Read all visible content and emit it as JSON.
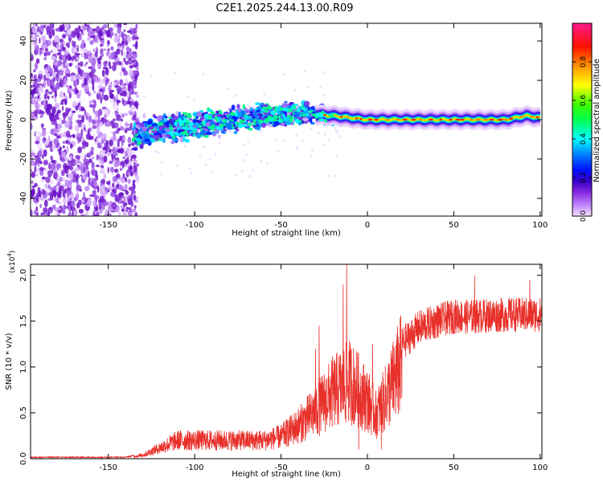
{
  "title": "C2E1.2025.244.13.00.R09",
  "chart_data": [
    {
      "type": "heatmap",
      "title": "C2E1.2025.244.13.00.R09",
      "xlabel": "Height of straight line (km)",
      "ylabel": "Frequency (Hz)",
      "xlim": [
        -195,
        101
      ],
      "ylim": [
        -49,
        49
      ],
      "xticks": [
        -150,
        -100,
        -50,
        0,
        50,
        100
      ],
      "yticks": [
        -40,
        -20,
        0,
        20,
        40
      ],
      "xtick_labels": [
        "-150",
        "-100",
        "-50",
        "0",
        "50",
        "100"
      ],
      "ytick_labels": [
        "-40",
        "-20",
        "0",
        "20",
        "40"
      ],
      "colorbar": {
        "label": "Normalized spectral amplitude",
        "range": [
          0,
          1
        ],
        "ticks": [
          0.0,
          0.2,
          0.4,
          0.6,
          0.8
        ],
        "tick_labels": [
          "0.0",
          "0.2",
          "0.4",
          "0.6",
          "0.8"
        ],
        "colors": [
          "#f0d8ff",
          "#c080ff",
          "#8a2be2",
          "#4b0082",
          "#0000ff",
          "#00ffff",
          "#00ff00",
          "#ffff00",
          "#ff8000",
          "#ff0000",
          "#ff1493"
        ]
      },
      "center_frequency_trend": [
        {
          "x": -135,
          "y": -8
        },
        {
          "x": -120,
          "y": -5
        },
        {
          "x": -100,
          "y": -3
        },
        {
          "x": -80,
          "y": 0
        },
        {
          "x": -60,
          "y": 2
        },
        {
          "x": -40,
          "y": 3
        },
        {
          "x": -20,
          "y": 2
        },
        {
          "x": 0,
          "y": 0
        },
        {
          "x": 50,
          "y": 0
        },
        {
          "x": 80,
          "y": 0
        },
        {
          "x": 92,
          "y": 2
        },
        {
          "x": 100,
          "y": 1
        }
      ]
    },
    {
      "type": "line",
      "xlabel": "Height of straight line (km)",
      "ylabel": "SNR (10 * v/v)",
      "y_multiplier": "(x10",
      "y_multiplier_exp": "4",
      "y_multiplier_close": ")",
      "xlim": [
        -195,
        101
      ],
      "ylim": [
        0,
        2.12
      ],
      "xticks": [
        -150,
        -100,
        -50,
        0,
        50,
        100
      ],
      "yticks": [
        0.0,
        0.5,
        1.0,
        1.5,
        2.0
      ],
      "xtick_labels": [
        "-150",
        "-100",
        "-50",
        "0",
        "50",
        "100"
      ],
      "ytick_labels": [
        "0.0",
        "0.5",
        "1.0",
        "1.5",
        "2.0"
      ],
      "series": [
        {
          "name": "SNR",
          "color": "#e8302a",
          "envelope": [
            {
              "x": -195,
              "y": 0.01
            },
            {
              "x": -140,
              "y": 0.01
            },
            {
              "x": -130,
              "y": 0.05
            },
            {
              "x": -120,
              "y": 0.15
            },
            {
              "x": -110,
              "y": 0.25
            },
            {
              "x": -100,
              "y": 0.25
            },
            {
              "x": -80,
              "y": 0.25
            },
            {
              "x": -60,
              "y": 0.25
            },
            {
              "x": -50,
              "y": 0.3
            },
            {
              "x": -40,
              "y": 0.45
            },
            {
              "x": -30,
              "y": 0.65
            },
            {
              "x": -20,
              "y": 0.9
            },
            {
              "x": -10,
              "y": 1.05
            },
            {
              "x": 0,
              "y": 0.8
            },
            {
              "x": 5,
              "y": 0.6
            },
            {
              "x": 10,
              "y": 0.8
            },
            {
              "x": 15,
              "y": 1.05
            },
            {
              "x": 20,
              "y": 1.3
            },
            {
              "x": 30,
              "y": 1.48
            },
            {
              "x": 40,
              "y": 1.55
            },
            {
              "x": 50,
              "y": 1.6
            },
            {
              "x": 60,
              "y": 1.6
            },
            {
              "x": 80,
              "y": 1.62
            },
            {
              "x": 100,
              "y": 1.62
            }
          ],
          "spikes": [
            {
              "x": -12,
              "y": 2.12
            },
            {
              "x": -14,
              "y": 1.9
            },
            {
              "x": -28,
              "y": 1.45
            },
            {
              "x": -30,
              "y": 1.2
            },
            {
              "x": 8,
              "y": 0.1
            },
            {
              "x": 62,
              "y": 2.0
            },
            {
              "x": 94,
              "y": 1.95
            },
            {
              "x": 3,
              "y": 1.25
            },
            {
              "x": -5,
              "y": 0.1
            }
          ]
        }
      ]
    }
  ]
}
